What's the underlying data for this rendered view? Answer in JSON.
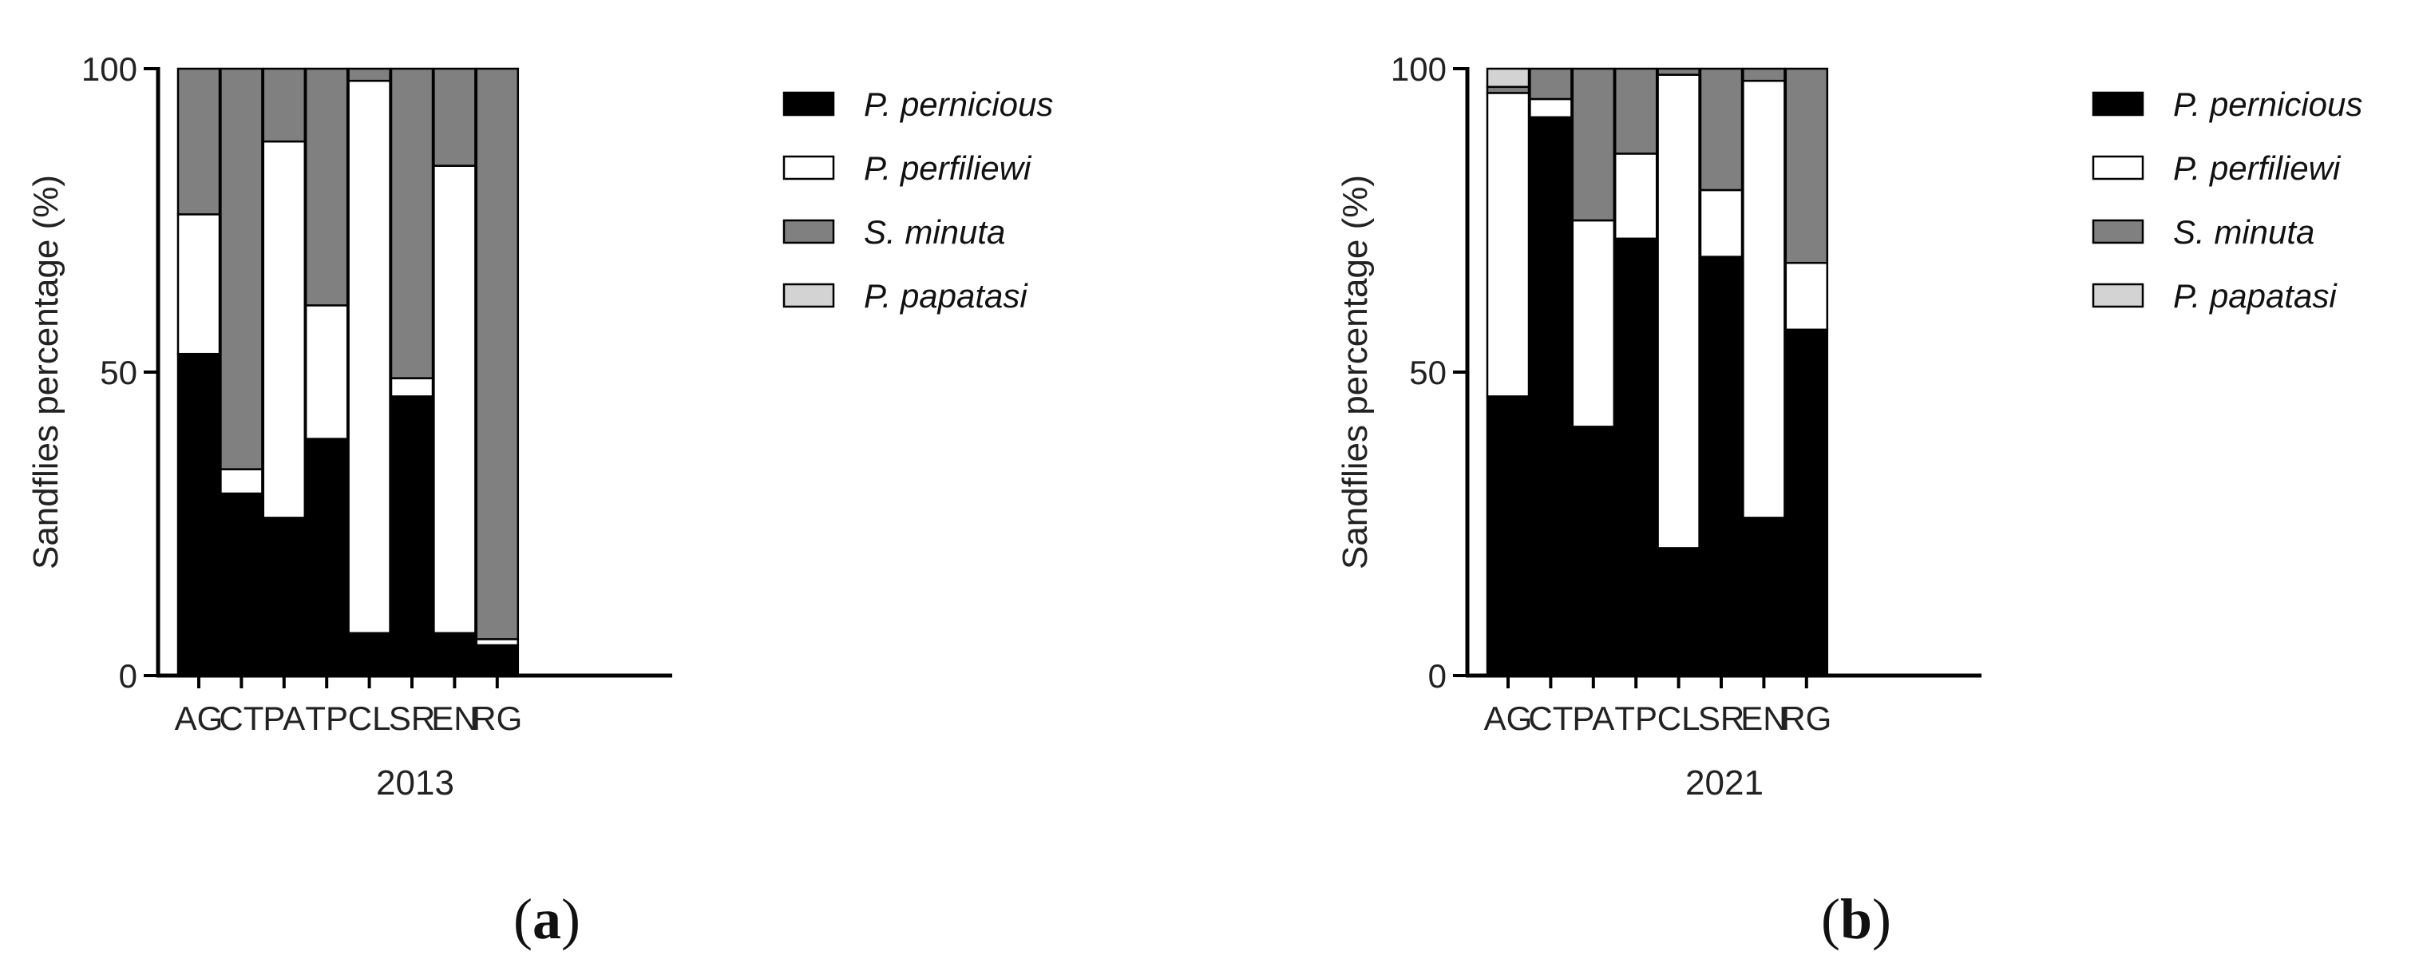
{
  "chart_data": [
    {
      "type": "bar",
      "stacked": true,
      "panel_label": "(a)",
      "panel_letter": "a",
      "title": "",
      "xlabel": "2013",
      "ylabel": "Sandflies percentage (%)",
      "ylim": [
        0,
        100
      ],
      "yticks": [
        "0",
        "50",
        "100"
      ],
      "legend_position": "right",
      "categories": [
        "AG",
        "CT",
        "PA",
        "TP",
        "CL",
        "SR",
        "EN",
        "RG"
      ],
      "series": [
        {
          "name": "P. pernicious",
          "color": "#000000",
          "values": [
            53,
            30,
            26,
            39,
            7,
            46,
            7,
            5
          ]
        },
        {
          "name": "P. perfiliewi",
          "color": "#ffffff",
          "values": [
            23,
            4,
            62,
            22,
            91,
            3,
            77,
            1
          ]
        },
        {
          "name": "S. minuta",
          "color": "#808080",
          "values": [
            24,
            66,
            12,
            39,
            2,
            51,
            16,
            94
          ]
        },
        {
          "name": "P. papatasi",
          "color": "#d3d3d3",
          "values": [
            0,
            0,
            0,
            0,
            0,
            0,
            0,
            0
          ]
        }
      ]
    },
    {
      "type": "bar",
      "stacked": true,
      "panel_label": "(b)",
      "panel_letter": "b",
      "title": "",
      "xlabel": "2021",
      "ylabel": "Sandflies percentage (%)",
      "ylim": [
        0,
        100
      ],
      "yticks": [
        "0",
        "50",
        "100"
      ],
      "legend_position": "right",
      "categories": [
        "AG",
        "CT",
        "PA",
        "TP",
        "CL",
        "SR",
        "EN",
        "RG"
      ],
      "series": [
        {
          "name": "P. pernicious",
          "color": "#000000",
          "values": [
            46,
            92,
            41,
            72,
            21,
            69,
            26,
            57
          ]
        },
        {
          "name": "P. perfiliewi",
          "color": "#ffffff",
          "values": [
            50,
            3,
            34,
            14,
            78,
            11,
            72,
            11
          ]
        },
        {
          "name": "S. minuta",
          "color": "#808080",
          "values": [
            1,
            5,
            25,
            14,
            1,
            20,
            2,
            32
          ]
        },
        {
          "name": "P. papatasi",
          "color": "#d3d3d3",
          "values": [
            3,
            0,
            0,
            0,
            0,
            0,
            0,
            0
          ]
        }
      ]
    }
  ]
}
